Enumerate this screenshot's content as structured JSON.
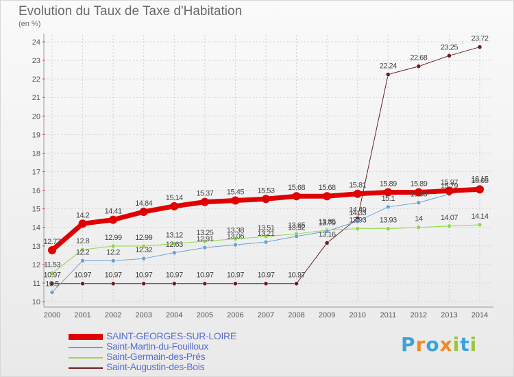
{
  "title": "Evolution du Taux de Taxe d'Habitation",
  "unit_label": "(en %)",
  "logo": {
    "letters": [
      "P",
      "r",
      "o",
      "x",
      "i",
      "t",
      "i"
    ],
    "colors": [
      "#3ba3d8",
      "#f08a24",
      "#3ba3d8",
      "#f08a24",
      "#9ac43c",
      "#3ba3d8",
      "#9ac43c"
    ]
  },
  "chart_data": {
    "type": "line",
    "x": [
      "2000",
      "2001",
      "2002",
      "2003",
      "2004",
      "2005",
      "2006",
      "2007",
      "2008",
      "2009",
      "2010",
      "2011",
      "2012",
      "2013",
      "2014"
    ],
    "ylim": [
      10,
      24
    ],
    "yticks": [
      "10",
      "11",
      "12",
      "13",
      "14",
      "15",
      "16",
      "17",
      "18",
      "19",
      "20",
      "21",
      "22",
      "23",
      "24"
    ],
    "grid": true,
    "legend_position": "bottom-left",
    "series": [
      {
        "name": "SAINT-GEORGES-SUR-LOIRE",
        "color": "#e00000",
        "width": 7,
        "values": [
          12.77,
          14.2,
          14.41,
          14.84,
          15.14,
          15.37,
          15.45,
          15.53,
          15.68,
          15.68,
          15.81,
          15.89,
          15.89,
          15.97,
          16.05
        ],
        "labels": [
          "12.77",
          "14.2",
          "14.41",
          "14.84",
          "15.14",
          "15.37",
          "15.45",
          "15.53",
          "15.68",
          "15.68",
          "15.81",
          "15.89",
          "15.89",
          "15.97",
          "16.05"
        ]
      },
      {
        "name": "Saint-Martin-du-Fouilloux",
        "color": "#6aa2d8",
        "width": 1,
        "values": [
          10.5,
          12.2,
          12.2,
          12.32,
          12.63,
          12.91,
          13.06,
          13.21,
          13.52,
          13.79,
          14.33,
          15.1,
          15.33,
          15.79,
          16.15
        ],
        "labels": [
          "10.5",
          "12.2",
          "12.2",
          "12.32",
          "12.63",
          "12.91",
          "13.06",
          "13.21",
          "13.52",
          "13.79",
          "14.33",
          "15.1",
          "15.33",
          "15.79",
          "16.15"
        ]
      },
      {
        "name": "Saint-Germain-des-Prés",
        "color": "#8fd84a",
        "width": 1,
        "values": [
          11.53,
          12.8,
          12.99,
          12.99,
          13.12,
          13.25,
          13.38,
          13.51,
          13.65,
          13.85,
          13.93,
          13.93,
          14.0,
          14.07,
          14.14
        ],
        "labels": [
          "11.53",
          "12.8",
          "12.99",
          "12.99",
          "13.12",
          "13.25",
          "13.38",
          "13.51",
          "13.65",
          "13.85",
          "13.93",
          "13.93",
          "14",
          "14.07",
          "14.14"
        ]
      },
      {
        "name": "Saint-Augustin-des-Bois",
        "color": "#6b1e22",
        "width": 1,
        "values": [
          10.97,
          10.97,
          10.97,
          10.97,
          10.97,
          10.97,
          10.97,
          10.97,
          10.97,
          13.16,
          14.49,
          22.24,
          22.68,
          23.25,
          23.72
        ],
        "labels": [
          "10.97",
          "10.97",
          "10.97",
          "10.97",
          "10.97",
          "10.97",
          "10.97",
          "10.97",
          "10.97",
          "13.16",
          "14.49",
          "22.24",
          "22.68",
          "23.25",
          "23.72"
        ]
      }
    ]
  }
}
